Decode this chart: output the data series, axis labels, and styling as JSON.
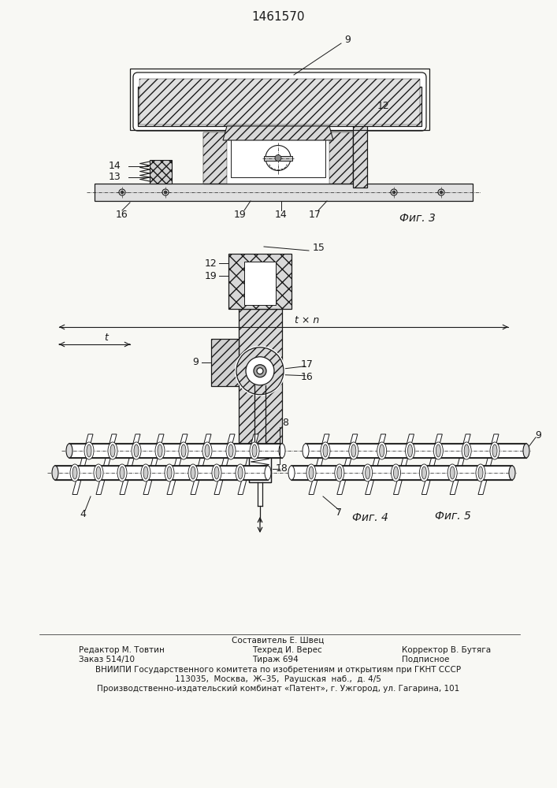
{
  "title": "1461570",
  "bg_color": "#f8f8f4",
  "line_color": "#1a1a1a",
  "fig3_label": "Фиг. 3",
  "fig4_label": "Фиг. 4",
  "fig5_label": "Фиг. 5",
  "footer_line1": "Составитель Е. Швец",
  "footer_line2_left": "Редактор М. Товтин",
  "footer_line2_mid": "Техред И. Верес",
  "footer_line2_right": "Корректор В. Бутяга",
  "footer_line3_left": "Заказ 514/10",
  "footer_line3_mid": "Тираж 694",
  "footer_line3_right": "Подписное",
  "footer_line4": "ВНИИПИ Государственного комитета по изобретениям и открытиям при ГКНТ СССР",
  "footer_line5": "113035,  Москва,  Ж–35,  Раушская  наб.,  д. 4/5",
  "footer_line6": "Производственно-издательский комбинат «Патент», г. Ужгород, ул. Гагарина, 101"
}
